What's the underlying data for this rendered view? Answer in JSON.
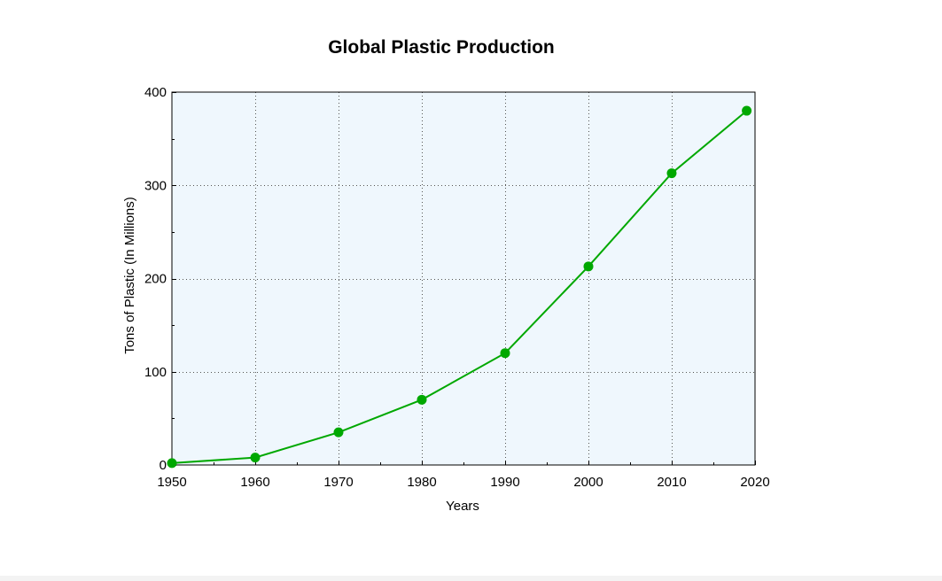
{
  "chart_data": {
    "type": "line",
    "title": "Global Plastic Production",
    "xlabel": "Years",
    "ylabel": "Tons of Plastic (In Millions)",
    "xlim": [
      1950,
      2020
    ],
    "ylim": [
      0,
      400
    ],
    "x_ticks": [
      1950,
      1960,
      1970,
      1980,
      1990,
      2000,
      2010,
      2020
    ],
    "y_ticks": [
      0,
      100,
      200,
      300,
      400
    ],
    "grid": true,
    "legend": "none",
    "series": [
      {
        "x": [
          1950,
          1960,
          1970,
          1980,
          1990,
          2000,
          2010,
          2019
        ],
        "values": [
          2,
          8,
          35,
          70,
          120,
          213,
          313,
          380
        ],
        "color": "#00a800"
      }
    ],
    "colors": {
      "plot_background": "#eff7fd",
      "line": "#00a800",
      "grid": "#555555"
    }
  }
}
